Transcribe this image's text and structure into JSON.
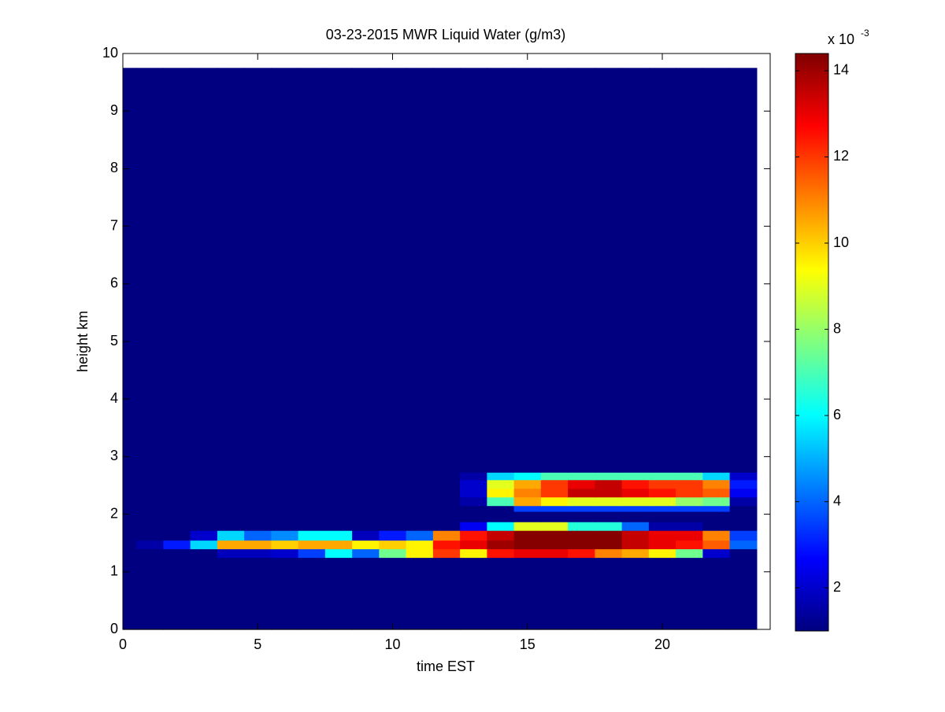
{
  "chart_data": {
    "type": "heatmap",
    "title": "03-23-2015 MWR Liquid Water (g/m3)",
    "xlabel": "time EST",
    "ylabel": "height km",
    "colorbar_label": "x 10",
    "colorbar_exponent": "-3",
    "colormap": "jet",
    "xlim": [
      0,
      24
    ],
    "ylim": [
      0,
      10
    ],
    "xticks": [
      0,
      5,
      10,
      15,
      20
    ],
    "yticks": [
      0,
      1,
      2,
      3,
      4,
      5,
      6,
      7,
      8,
      9,
      10
    ],
    "clim": [
      1,
      14.4
    ],
    "cticks": [
      2,
      4,
      6,
      8,
      10,
      12,
      14
    ],
    "x_edges": [
      0,
      0.5,
      1.5,
      2.5,
      3.5,
      4.5,
      5.5,
      6.5,
      7.5,
      8.5,
      9.5,
      10.5,
      11.5,
      12.5,
      13.5,
      14.5,
      15.5,
      16.5,
      17.5,
      18.5,
      19.5,
      20.5,
      21.5,
      22.5,
      23.5
    ],
    "y_edges": [
      0,
      1.25,
      1.4,
      1.55,
      1.72,
      1.87,
      2.05,
      2.15,
      2.3,
      2.45,
      2.6,
      2.73,
      9.75
    ],
    "z": [
      [
        1,
        1,
        1,
        1,
        1,
        1,
        1,
        1,
        1,
        1,
        1,
        1,
        1,
        1,
        1,
        1,
        1,
        1,
        1,
        1,
        1,
        1,
        1,
        1
      ],
      [
        1,
        1,
        1,
        1,
        1.8,
        1.8,
        2,
        3.5,
        6,
        4,
        7.5,
        9.5,
        12,
        9.5,
        12.5,
        13,
        13,
        12.5,
        11,
        10.5,
        9.5,
        7.5,
        2,
        1
      ],
      [
        1,
        1.5,
        3,
        5.5,
        10.5,
        10.5,
        10,
        10.5,
        10.5,
        9.5,
        10,
        9.5,
        12.5,
        13,
        14,
        14.3,
        14.3,
        14.3,
        14.3,
        13.5,
        13,
        12.5,
        11.5,
        4
      ],
      [
        1,
        1,
        1,
        2,
        5.5,
        4,
        4.5,
        6,
        6,
        1.8,
        3,
        4,
        11,
        12.5,
        13.5,
        14.3,
        14.3,
        14.3,
        14.3,
        13.5,
        13,
        13,
        11,
        3.5
      ],
      [
        1,
        1,
        1,
        1,
        1,
        1,
        1,
        1,
        1,
        1,
        1,
        1,
        1,
        2.5,
        6,
        9,
        9,
        6.5,
        6.5,
        4,
        1.5,
        1.5,
        1,
        1
      ],
      [
        1,
        1,
        1,
        1,
        1,
        1,
        1,
        1,
        1,
        1,
        1,
        1,
        1,
        1,
        1,
        1,
        1,
        1,
        1,
        1,
        1,
        1,
        1,
        1
      ],
      [
        1,
        1,
        1,
        1,
        1,
        1,
        1,
        1,
        1,
        1,
        1,
        1,
        1,
        1,
        1,
        3.5,
        3.5,
        3.5,
        3.5,
        3.5,
        3.5,
        3.5,
        3.5,
        1
      ],
      [
        1,
        1,
        1,
        1,
        1,
        1,
        1,
        1,
        1,
        1,
        1,
        1,
        1,
        1.5,
        7,
        10.5,
        9.5,
        9,
        9,
        9,
        9,
        8,
        7.5,
        1.5
      ],
      [
        1,
        1,
        1,
        1,
        1,
        1,
        1,
        1,
        1,
        1,
        1,
        1,
        1,
        2,
        9.5,
        11,
        12,
        13.5,
        13.5,
        13,
        12.5,
        12,
        11.5,
        2.5
      ],
      [
        1,
        1,
        1,
        1,
        1,
        1,
        1,
        1,
        1,
        1,
        1,
        1,
        1,
        2,
        9,
        10.5,
        12,
        13,
        13.5,
        12.5,
        12,
        12,
        11,
        3
      ],
      [
        1,
        1,
        1,
        1,
        1,
        1,
        1,
        1,
        1,
        1,
        1,
        1,
        1,
        1.5,
        5.5,
        6,
        7,
        7,
        7,
        7,
        7,
        7,
        5.5,
        2
      ],
      [
        1,
        1,
        1,
        1,
        1,
        1,
        1,
        1,
        1,
        1,
        1,
        1,
        1,
        1,
        1,
        1,
        1,
        1,
        1,
        1,
        1,
        1,
        1,
        1
      ]
    ]
  }
}
